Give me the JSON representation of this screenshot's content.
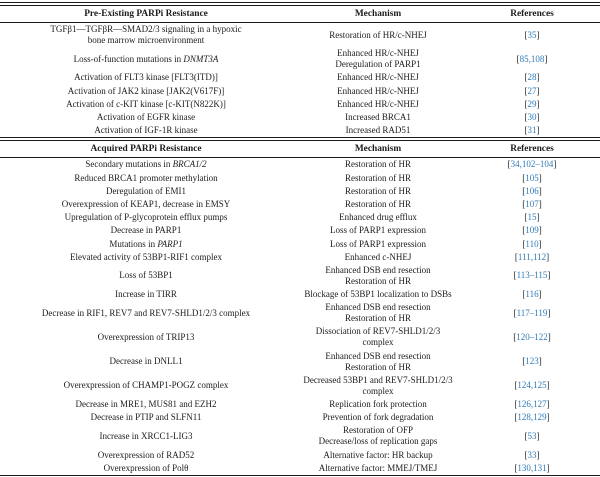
{
  "colors": {
    "reference_link_blue": "#2e7ab8",
    "text": "#1c1c1c",
    "rule": "#1a1a1a",
    "background": "#ffffff"
  },
  "table": {
    "sections": [
      {
        "headers": [
          "Pre-Existing PARPi Resistance",
          "Mechanism",
          "References"
        ],
        "rows": [
          {
            "resistance": [
              [
                "TGFβ1—TGFβR—SMAD2/3 signaling in a hypoxic"
              ],
              [
                "bone marrow microenvironment"
              ]
            ],
            "mechanism": [
              "Restoration of HR/c-NHEJ"
            ],
            "refs": "35"
          },
          {
            "resistance": [
              [
                "Loss-of-function mutations in ",
                {
                  "i": "DNMT3A"
                }
              ]
            ],
            "mechanism": [
              "Enhanced HR/c-NHEJ",
              "Deregulation of PARP1"
            ],
            "refs": "85,108"
          },
          {
            "resistance": [
              [
                "Activation of FLT3 kinase [FLT3(ITD)]"
              ]
            ],
            "mechanism": [
              "Enhanced HR/c-NHEJ"
            ],
            "refs": "28"
          },
          {
            "resistance": [
              [
                "Activation of JAK2 kinase [JAK2(V617F)]"
              ]
            ],
            "mechanism": [
              "Enhanced HR/c-NHEJ"
            ],
            "refs": "27"
          },
          {
            "resistance": [
              [
                "Activation of c-KIT kinase [c-KIT(N822K)]"
              ]
            ],
            "mechanism": [
              "Enhanced HR/c-NHEJ"
            ],
            "refs": "29"
          },
          {
            "resistance": [
              [
                "Activation of EGFR kinase"
              ]
            ],
            "mechanism": [
              "Increased BRCA1"
            ],
            "refs": "30"
          },
          {
            "resistance": [
              [
                "Activation of IGF-1R kinase"
              ]
            ],
            "mechanism": [
              "Increased RAD51"
            ],
            "refs": "31"
          }
        ]
      },
      {
        "headers": [
          "Acquired PARPi Resistance",
          "Mechanism",
          "References"
        ],
        "rows": [
          {
            "resistance": [
              [
                "Secondary mutations in ",
                {
                  "i": "BRCA1/2"
                }
              ]
            ],
            "mechanism": [
              "Restoration of HR"
            ],
            "refs": "34,102–104"
          },
          {
            "resistance": [
              [
                "Reduced BRCA1 promoter methylation"
              ]
            ],
            "mechanism": [
              "Restoration of HR"
            ],
            "refs": "105"
          },
          {
            "resistance": [
              [
                "Deregulation of EMI1"
              ]
            ],
            "mechanism": [
              "Restoration of HR"
            ],
            "refs": "106"
          },
          {
            "resistance": [
              [
                "Overexpression of KEAP1, decrease in EMSY"
              ]
            ],
            "mechanism": [
              "Restoration of HR"
            ],
            "refs": "107"
          },
          {
            "resistance": [
              [
                "Upregulation of P-glycoprotein efflux pumps"
              ]
            ],
            "mechanism": [
              "Enhanced drug efflux"
            ],
            "refs": "15"
          },
          {
            "resistance": [
              [
                "Decrease in PARP1"
              ]
            ],
            "mechanism": [
              "Loss of PARP1 expression"
            ],
            "refs": "109"
          },
          {
            "resistance": [
              [
                "Mutations in ",
                {
                  "i": "PARP1"
                }
              ]
            ],
            "mechanism": [
              "Loss of PARP1 expression"
            ],
            "refs": "110"
          },
          {
            "resistance": [
              [
                "Elevated activity of 53BP1-RIF1 complex"
              ]
            ],
            "mechanism": [
              "Enhanced c-NHEJ"
            ],
            "refs": "111,112"
          },
          {
            "resistance": [
              [
                "Loss of 53BP1"
              ]
            ],
            "mechanism": [
              "Enhanced DSB end resection",
              "Restoration of HR"
            ],
            "refs": "113–115"
          },
          {
            "resistance": [
              [
                "Increase in TIRR"
              ]
            ],
            "mechanism": [
              "Blockage of 53BP1 localization to DSBs"
            ],
            "refs": "116"
          },
          {
            "resistance": [
              [
                "Decrease in RIF1, REV7 and REV7-SHLD1/2/3 complex"
              ]
            ],
            "mechanism": [
              "Enhanced DSB end resection",
              "Restoration of HR"
            ],
            "refs": "117–119"
          },
          {
            "resistance": [
              [
                "Overexpression of TRIP13"
              ]
            ],
            "mechanism": [
              "Dissociation of REV7-SHLD1/2/3",
              "complex"
            ],
            "refs": "120–122"
          },
          {
            "resistance": [
              [
                "Decrease in DNLL1"
              ]
            ],
            "mechanism": [
              "Enhanced DSB end resection",
              "Restoration of HR"
            ],
            "refs": "123"
          },
          {
            "resistance": [
              [
                "Overexpression of CHAMP1-POGZ complex"
              ]
            ],
            "mechanism": [
              "Decreased 53BP1 and REV7-SHLD1/2/3",
              "complex"
            ],
            "refs": "124,125"
          },
          {
            "resistance": [
              [
                "Decrease in MRE1, MUS81 and EZH2"
              ]
            ],
            "mechanism": [
              "Replication fork protection"
            ],
            "refs": "126,127"
          },
          {
            "resistance": [
              [
                "Decrease in PTIP and SLFN11"
              ]
            ],
            "mechanism": [
              "Prevention of fork degradation"
            ],
            "refs": "128,129"
          },
          {
            "resistance": [
              [
                "Increase in XRCC1-LIG3"
              ]
            ],
            "mechanism": [
              "Restoration of OFP",
              "Decrease/loss of replication gaps"
            ],
            "refs": "53"
          },
          {
            "resistance": [
              [
                "Overexpression of RAD52"
              ]
            ],
            "mechanism": [
              "Alternative factor: HR backup"
            ],
            "refs": "33"
          },
          {
            "resistance": [
              [
                "Overexpression of Polθ"
              ]
            ],
            "mechanism": [
              "Alternative factor: MMEJ/TMEJ"
            ],
            "refs": "130,131"
          }
        ]
      }
    ]
  }
}
